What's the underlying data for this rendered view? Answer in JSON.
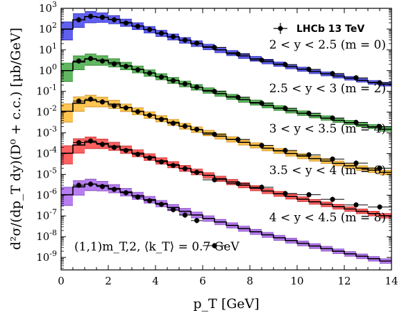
{
  "chart_data": {
    "type": "line",
    "xlabel": "p_T [GeV]",
    "ylabel": "d²σ/(dp_T dy)(D⁰ + c.c.) [μb/GeV]",
    "xlim": [
      0,
      14
    ],
    "ylim_log10": [
      -9.6,
      3
    ],
    "yscale": "log",
    "grid": false,
    "legend": {
      "placement": "top-right",
      "entries": [
        "LHCb 13 TeV"
      ]
    },
    "annotation": "(1,1)m_T,2, ⟨k_T⟩ = 0.7 GeV",
    "x_ticks": [
      "0",
      "2",
      "4",
      "6",
      "8",
      "10",
      "12",
      "14"
    ],
    "y_ticks": [
      {
        "mant": "10",
        "exp": "3"
      },
      {
        "mant": "10",
        "exp": "2"
      },
      {
        "mant": "10",
        "exp": "1"
      },
      {
        "mant": "10",
        "exp": "0"
      },
      {
        "mant": "10",
        "exp": "-1"
      },
      {
        "mant": "10",
        "exp": "-2"
      },
      {
        "mant": "10",
        "exp": "-3"
      },
      {
        "mant": "10",
        "exp": "-4"
      },
      {
        "mant": "10",
        "exp": "-5"
      },
      {
        "mant": "10",
        "exp": "-6"
      },
      {
        "mant": "10",
        "exp": "-7"
      },
      {
        "mant": "10",
        "exp": "-8"
      },
      {
        "mant": "10",
        "exp": "-9"
      }
    ],
    "bins": [
      0,
      0.5,
      1,
      1.5,
      2,
      2.5,
      3,
      3.5,
      4,
      4.5,
      5,
      5.5,
      6,
      6.5,
      7,
      7.5,
      8,
      8.5,
      9,
      9.5,
      10,
      10.5,
      11,
      11.5,
      12,
      12.5,
      13,
      13.5,
      14
    ],
    "series": [
      {
        "label": "2 < y < 2.5 (m = 0)",
        "color": "#4444ee",
        "central": [
          100.0,
          280.0,
          400.0,
          370.0,
          290.0,
          205.0,
          140.0,
          95.0,
          63.0,
          42.0,
          29.0,
          20.0,
          14.0,
          10.0,
          7.1,
          5.1,
          3.7,
          2.75,
          2.05,
          1.55,
          1.17,
          0.9,
          0.7,
          0.55,
          0.43,
          0.34,
          0.27,
          0.22
        ],
        "upper": [
          220.0,
          550.0,
          700.0,
          600.0,
          440.0,
          300.0,
          200.0,
          133.0,
          87.0,
          58.0,
          39.0,
          27.0,
          18.5,
          13.0,
          9.2,
          6.6,
          4.8,
          3.5,
          2.6,
          1.95,
          1.46,
          1.12,
          0.86,
          0.67,
          0.52,
          0.41,
          0.33,
          0.27
        ],
        "lower": [
          30.0,
          120.0,
          200.0,
          210.0,
          180.0,
          135.0,
          95.0,
          65.0,
          44.0,
          30.0,
          21.0,
          14.5,
          10.2,
          7.3,
          5.3,
          3.85,
          2.85,
          2.12,
          1.6,
          1.22,
          0.93,
          0.72,
          0.56,
          0.44,
          0.35,
          0.28,
          0.22,
          0.18
        ],
        "points_x": [
          0.75,
          1.25,
          1.75,
          2.25,
          2.75,
          3.25,
          3.75,
          4.25,
          4.75,
          5.25,
          5.75,
          6.5,
          7.5,
          8.5,
          9.5,
          10.5,
          11.5,
          12.5,
          13.5
        ],
        "points_y": [
          280.0,
          410.0,
          370.0,
          280.0,
          195.0,
          135.0,
          95.0,
          63.0,
          43.0,
          29.5,
          21.0,
          13.0,
          6.3,
          3.2,
          1.95,
          1.15,
          0.72,
          0.45,
          0.26
        ]
      },
      {
        "label": "2.5 < y < 3 (m = 2)",
        "color": "#44aa44",
        "central": [
          1.0,
          2.6,
          3.6,
          3.2,
          2.4,
          1.7,
          1.15,
          0.77,
          0.51,
          0.34,
          0.23,
          0.158,
          0.11,
          0.078,
          0.055,
          0.04,
          0.029,
          0.021,
          0.0156,
          0.0117,
          0.0088,
          0.0067,
          0.0051,
          0.004,
          0.0031,
          0.0024,
          0.0019,
          0.0015
        ],
        "upper": [
          2.3,
          5.1,
          6.3,
          5.2,
          3.7,
          2.5,
          1.65,
          1.08,
          0.71,
          0.47,
          0.31,
          0.213,
          0.147,
          0.103,
          0.072,
          0.052,
          0.038,
          0.028,
          0.0205,
          0.0152,
          0.0114,
          0.0087,
          0.0066,
          0.0051,
          0.004,
          0.0031,
          0.0025,
          0.0019
        ],
        "lower": [
          0.3,
          1.1,
          1.8,
          1.8,
          1.5,
          1.1,
          0.78,
          0.53,
          0.36,
          0.24,
          0.165,
          0.115,
          0.081,
          0.058,
          0.041,
          0.03,
          0.022,
          0.0162,
          0.0121,
          0.0091,
          0.0069,
          0.0053,
          0.0041,
          0.0032,
          0.0025,
          0.002,
          0.0016,
          0.0012
        ],
        "points_x": [
          0.75,
          1.25,
          1.75,
          2.25,
          2.75,
          3.25,
          3.75,
          4.25,
          4.75,
          5.25,
          5.75,
          6.5,
          7.5,
          8.5,
          9.5,
          10.5,
          11.5,
          12.5,
          13.5
        ],
        "points_y": [
          2.9,
          3.8,
          2.9,
          2.1,
          1.6,
          1.1,
          0.75,
          0.49,
          0.33,
          0.23,
          0.16,
          0.1,
          0.052,
          0.027,
          0.0152,
          0.0088,
          0.0052,
          0.0032,
          0.002
        ]
      },
      {
        "label": "3 < y < 3.5 (m = 4)",
        "color": "#ffbb33",
        "central": [
          0.011,
          0.027,
          0.037,
          0.032,
          0.024,
          0.0165,
          0.011,
          0.0073,
          0.0048,
          0.0032,
          0.0021,
          0.00144,
          0.00099,
          0.00069,
          0.00049,
          0.00035,
          0.000252,
          0.000184,
          0.000136,
          0.000101,
          7.6e-05,
          5.8e-05,
          4.4e-05,
          3.4e-05,
          2.6e-05,
          2e-05,
          1.6e-05,
          1.25e-05
        ],
        "upper": [
          0.025,
          0.054,
          0.065,
          0.052,
          0.037,
          0.0245,
          0.016,
          0.0103,
          0.0067,
          0.0044,
          0.0029,
          0.00195,
          0.00133,
          0.00092,
          0.00065,
          0.00046,
          0.00033,
          0.000242,
          0.000178,
          0.000132,
          9.9e-05,
          7.5e-05,
          5.7e-05,
          4.4e-05,
          3.4e-05,
          2.6e-05,
          2.1e-05,
          1.6e-05
        ],
        "lower": [
          0.0033,
          0.011,
          0.018,
          0.018,
          0.015,
          0.0107,
          0.0075,
          0.005,
          0.0034,
          0.0023,
          0.00152,
          0.00105,
          0.00073,
          0.00051,
          0.00036,
          0.00026,
          0.000188,
          0.000138,
          0.000102,
          7.6e-05,
          5.7e-05,
          4.4e-05,
          3.4e-05,
          2.6e-05,
          2e-05,
          1.55e-05,
          1.22e-05,
          9.6e-06
        ],
        "points_x": [
          0.75,
          1.25,
          1.75,
          2.25,
          2.75,
          3.25,
          3.75,
          4.25,
          4.75,
          5.25,
          5.75,
          6.5,
          7.5,
          8.5,
          9.5,
          10.5,
          11.5,
          12.5,
          13.5
        ],
        "points_y": [
          0.034,
          0.042,
          0.031,
          0.02,
          0.016,
          0.0105,
          0.007,
          0.0045,
          0.0029,
          0.0021,
          0.00148,
          0.00085,
          0.00048,
          0.00025,
          0.000142,
          8.8e-05,
          5.5e-05,
          3.5e-05,
          2e-05
        ]
      },
      {
        "label": "3.5 < y < 4 (m = 6)",
        "color": "#ff4444",
        "central": [
          0.000105,
          0.00026,
          0.00036,
          0.00031,
          0.00023,
          0.000158,
          0.000105,
          6.9e-05,
          4.5e-05,
          2.95e-05,
          1.95e-05,
          1.32e-05,
          9e-06,
          6.2e-06,
          4.3e-06,
          3.05e-06,
          2.18e-06,
          1.58e-06,
          1.16e-06,
          8.6e-07,
          6.4e-07,
          4.8e-07,
          3.65e-07,
          2.8e-07,
          2.15e-07,
          1.67e-07,
          1.3e-07,
          1.02e-07
        ],
        "upper": [
          0.00024,
          0.00052,
          0.00063,
          0.0005,
          0.00035,
          0.000234,
          0.000152,
          9.8e-05,
          6.3e-05,
          4.1e-05,
          2.7e-05,
          1.8e-05,
          1.21e-05,
          8.2e-06,
          5.7e-06,
          4e-06,
          2.85e-06,
          2.07e-06,
          1.51e-06,
          1.12e-06,
          8.3e-07,
          6.2e-07,
          4.7e-07,
          3.6e-07,
          2.77e-07,
          2.15e-07,
          1.68e-07,
          1.31e-07
        ],
        "lower": [
          3.2e-05,
          0.000105,
          0.000175,
          0.000175,
          0.000143,
          0.000102,
          7.1e-05,
          4.7e-05,
          3.15e-05,
          2.1e-05,
          1.4e-05,
          9.6e-06,
          6.6e-06,
          4.6e-06,
          3.2e-06,
          2.28e-06,
          1.64e-06,
          1.19e-06,
          8.8e-07,
          6.5e-07,
          4.9e-07,
          3.7e-07,
          2.8e-07,
          2.15e-07,
          1.66e-07,
          1.29e-07,
          1.01e-07,
          7.9e-08
        ],
        "points_x": [
          0.75,
          1.25,
          1.75,
          2.25,
          2.75,
          3.25,
          3.75,
          4.25,
          4.75,
          5.25,
          5.75,
          6.5,
          7.5,
          8.5,
          9.5,
          10.5,
          11.5,
          12.5,
          13.5
        ],
        "points_y": [
          0.00034,
          0.00041,
          0.00028,
          0.0002,
          0.000142,
          9.3e-05,
          6.2e-05,
          4e-05,
          2.7e-05,
          1.9e-05,
          1.25e-05,
          5.5e-06,
          3.6e-06,
          2.4e-06,
          1.2e-06,
          1.05e-06,
          6.3e-07,
          3.4e-07,
          2.7e-07
        ]
      },
      {
        "label": "4 < y < 4.5 (m = 8)",
        "color": "#aa66ee",
        "central": [
          1.05e-06,
          2.5e-06,
          3.4e-06,
          2.9e-06,
          2.1e-06,
          1.43e-06,
          9.4e-07,
          6.1e-07,
          3.95e-07,
          2.55e-07,
          1.67e-07,
          1.11e-07,
          7.5e-08,
          5.1e-08,
          3.5e-08,
          2.45e-08,
          1.72e-08,
          1.23e-08,
          8.9e-09,
          6.5e-09,
          4.8e-09,
          3.55e-09,
          2.65e-09,
          2e-09,
          1.5e-09,
          1.14e-09,
          8.7e-10,
          6.7e-10
        ],
        "upper": [
          2.4e-06,
          5e-06,
          5.9e-06,
          4.6e-06,
          3.2e-06,
          2.1e-06,
          1.36e-06,
          8.7e-07,
          5.5e-07,
          3.55e-07,
          2.3e-07,
          1.52e-07,
          1.01e-07,
          6.8e-08,
          4.65e-08,
          3.2e-08,
          2.24e-08,
          1.6e-08,
          1.15e-08,
          8.4e-09,
          6.2e-09,
          4.6e-09,
          3.4e-09,
          2.55e-09,
          1.92e-09,
          1.46e-09,
          1.11e-09,
          8.6e-10
        ],
        "lower": [
          3.2e-07,
          1e-06,
          1.65e-06,
          1.6e-06,
          1.3e-06,
          9.2e-07,
          6.3e-07,
          4.15e-07,
          2.75e-07,
          1.8e-07,
          1.2e-07,
          8.1e-08,
          5.5e-08,
          3.8e-08,
          2.62e-08,
          1.83e-08,
          1.29e-08,
          9.3e-09,
          6.7e-09,
          4.9e-09,
          3.65e-09,
          2.7e-09,
          2.02e-09,
          1.53e-09,
          1.15e-09,
          8.8e-10,
          6.7e-10,
          5.2e-10
        ],
        "points_x": [
          0.75,
          1.25,
          1.75,
          2.25,
          2.75,
          3.25,
          3.75,
          4.25,
          4.75,
          5.25,
          5.75,
          6.5
        ],
        "points_y": [
          3e-06,
          3.4e-06,
          2.6e-06,
          1.9e-06,
          1.3e-06,
          8.1e-07,
          5.4e-07,
          3.6e-07,
          2e-07,
          1.1e-07,
          6e-08,
          3.7e-09
        ]
      }
    ]
  }
}
